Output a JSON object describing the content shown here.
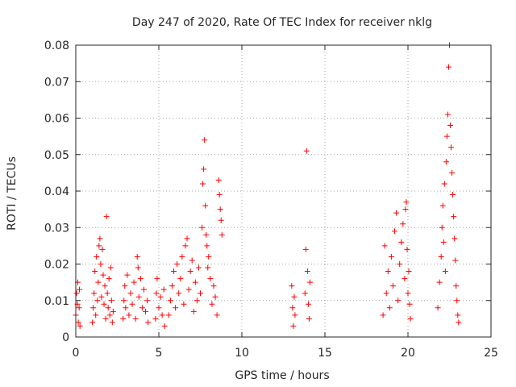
{
  "chart_data": {
    "type": "scatter",
    "title": "Day 247 of 2020, Rate Of TEC Index for receiver nklg",
    "xlabel": "GPS time / hours",
    "ylabel": "ROTI / TECUs",
    "xlim": [
      0,
      25
    ],
    "ylim": [
      0,
      0.08
    ],
    "x_ticks": [
      0,
      5,
      10,
      15,
      20,
      25
    ],
    "y_ticks": [
      0,
      0.01,
      0.02,
      0.03,
      0.04,
      0.05,
      0.06,
      0.07,
      0.08
    ],
    "x_tick_labels": [
      "0",
      "5",
      "10",
      "15",
      "20",
      "25"
    ],
    "y_tick_labels": [
      "0",
      "0.01",
      "0.02",
      "0.03",
      "0.04",
      "0.05",
      "0.06",
      "0.07",
      "0.08"
    ],
    "grid": true,
    "marker": "+",
    "color": "#ff0000",
    "series": [
      {
        "name": "ROTI",
        "points": [
          [
            0.0,
            0.006
          ],
          [
            0.05,
            0.012
          ],
          [
            0.1,
            0.009
          ],
          [
            0.12,
            0.015
          ],
          [
            0.15,
            0.004
          ],
          [
            0.2,
            0.008
          ],
          [
            0.22,
            0.013
          ],
          [
            0.25,
            0.003
          ],
          [
            1.0,
            0.004
          ],
          [
            1.05,
            0.008
          ],
          [
            1.1,
            0.012
          ],
          [
            1.15,
            0.018
          ],
          [
            1.2,
            0.006
          ],
          [
            1.25,
            0.022
          ],
          [
            1.3,
            0.01
          ],
          [
            1.35,
            0.015
          ],
          [
            1.4,
            0.025
          ],
          [
            1.45,
            0.027
          ],
          [
            1.5,
            0.02
          ],
          [
            1.55,
            0.011
          ],
          [
            1.6,
            0.024
          ],
          [
            1.65,
            0.017
          ],
          [
            1.7,
            0.009
          ],
          [
            1.75,
            0.014
          ],
          [
            1.8,
            0.005
          ],
          [
            1.85,
            0.033
          ],
          [
            1.9,
            0.012
          ],
          [
            1.95,
            0.008
          ],
          [
            2.0,
            0.016
          ],
          [
            2.05,
            0.006
          ],
          [
            2.1,
            0.019
          ],
          [
            2.15,
            0.01
          ],
          [
            2.2,
            0.004
          ],
          [
            2.25,
            0.007
          ],
          [
            2.85,
            0.005
          ],
          [
            2.9,
            0.01
          ],
          [
            2.95,
            0.014
          ],
          [
            3.0,
            0.008
          ],
          [
            3.1,
            0.017
          ],
          [
            3.2,
            0.006
          ],
          [
            3.3,
            0.012
          ],
          [
            3.4,
            0.009
          ],
          [
            3.5,
            0.015
          ],
          [
            3.6,
            0.005
          ],
          [
            3.7,
            0.022
          ],
          [
            3.75,
            0.019
          ],
          [
            3.8,
            0.011
          ],
          [
            3.9,
            0.016
          ],
          [
            4.0,
            0.008
          ],
          [
            4.1,
            0.013
          ],
          [
            4.2,
            0.007
          ],
          [
            4.3,
            0.01
          ],
          [
            4.35,
            0.004
          ],
          [
            4.8,
            0.005
          ],
          [
            4.85,
            0.012
          ],
          [
            4.9,
            0.016
          ],
          [
            5.0,
            0.008
          ],
          [
            5.1,
            0.011
          ],
          [
            5.2,
            0.006
          ],
          [
            5.3,
            0.013
          ],
          [
            5.35,
            0.003
          ],
          [
            5.6,
            0.006
          ],
          [
            5.7,
            0.01
          ],
          [
            5.8,
            0.014
          ],
          [
            5.9,
            0.018
          ],
          [
            6.0,
            0.008
          ],
          [
            6.1,
            0.02
          ],
          [
            6.2,
            0.012
          ],
          [
            6.3,
            0.016
          ],
          [
            6.4,
            0.022
          ],
          [
            6.5,
            0.009
          ],
          [
            6.6,
            0.025
          ],
          [
            6.7,
            0.027
          ],
          [
            6.8,
            0.013
          ],
          [
            6.9,
            0.018
          ],
          [
            7.0,
            0.021
          ],
          [
            7.1,
            0.007
          ],
          [
            7.2,
            0.015
          ],
          [
            7.3,
            0.01
          ],
          [
            7.4,
            0.019
          ],
          [
            7.5,
            0.012
          ],
          [
            7.6,
            0.03
          ],
          [
            7.65,
            0.042
          ],
          [
            7.7,
            0.046
          ],
          [
            7.75,
            0.054
          ],
          [
            7.8,
            0.036
          ],
          [
            7.85,
            0.028
          ],
          [
            7.9,
            0.025
          ],
          [
            7.95,
            0.019
          ],
          [
            8.0,
            0.022
          ],
          [
            8.1,
            0.016
          ],
          [
            8.2,
            0.009
          ],
          [
            8.3,
            0.014
          ],
          [
            8.4,
            0.011
          ],
          [
            8.5,
            0.006
          ],
          [
            8.6,
            0.043
          ],
          [
            8.65,
            0.039
          ],
          [
            8.7,
            0.035
          ],
          [
            8.75,
            0.032
          ],
          [
            8.8,
            0.028
          ],
          [
            13.0,
            0.014
          ],
          [
            13.05,
            0.008
          ],
          [
            13.1,
            0.003
          ],
          [
            13.15,
            0.011
          ],
          [
            13.2,
            0.006
          ],
          [
            13.8,
            0.012
          ],
          [
            13.85,
            0.024
          ],
          [
            13.9,
            0.051
          ],
          [
            13.95,
            0.018
          ],
          [
            14.0,
            0.009
          ],
          [
            14.05,
            0.005
          ],
          [
            14.1,
            0.015
          ],
          [
            18.5,
            0.006
          ],
          [
            18.6,
            0.025
          ],
          [
            18.7,
            0.012
          ],
          [
            18.8,
            0.018
          ],
          [
            18.9,
            0.008
          ],
          [
            19.0,
            0.022
          ],
          [
            19.1,
            0.014
          ],
          [
            19.2,
            0.029
          ],
          [
            19.3,
            0.034
          ],
          [
            19.4,
            0.01
          ],
          [
            19.5,
            0.02
          ],
          [
            19.6,
            0.026
          ],
          [
            19.7,
            0.031
          ],
          [
            19.8,
            0.016
          ],
          [
            19.85,
            0.035
          ],
          [
            19.9,
            0.037
          ],
          [
            19.95,
            0.024
          ],
          [
            20.0,
            0.012
          ],
          [
            20.05,
            0.018
          ],
          [
            20.1,
            0.009
          ],
          [
            20.15,
            0.005
          ],
          [
            21.8,
            0.008
          ],
          [
            21.9,
            0.015
          ],
          [
            22.0,
            0.022
          ],
          [
            22.05,
            0.03
          ],
          [
            22.1,
            0.036
          ],
          [
            22.15,
            0.026
          ],
          [
            22.2,
            0.042
          ],
          [
            22.25,
            0.018
          ],
          [
            22.3,
            0.048
          ],
          [
            22.35,
            0.055
          ],
          [
            22.4,
            0.061
          ],
          [
            22.45,
            0.074
          ],
          [
            22.5,
            0.08
          ],
          [
            22.55,
            0.058
          ],
          [
            22.6,
            0.052
          ],
          [
            22.65,
            0.045
          ],
          [
            22.7,
            0.039
          ],
          [
            22.75,
            0.033
          ],
          [
            22.8,
            0.027
          ],
          [
            22.85,
            0.021
          ],
          [
            22.9,
            0.014
          ],
          [
            22.95,
            0.01
          ],
          [
            23.0,
            0.006
          ],
          [
            23.05,
            0.004
          ]
        ]
      }
    ]
  }
}
